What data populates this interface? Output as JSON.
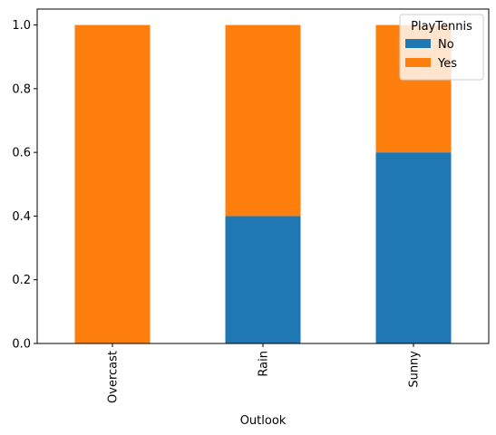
{
  "chart_data": {
    "type": "bar",
    "stacked": true,
    "categories": [
      "Overcast",
      "Rain",
      "Sunny"
    ],
    "series": [
      {
        "name": "No",
        "values": [
          0.0,
          0.4,
          0.6
        ],
        "color": "#1f77b4"
      },
      {
        "name": "Yes",
        "values": [
          1.0,
          0.6,
          0.4
        ],
        "color": "#ff7f0e"
      }
    ],
    "xlabel": "Outlook",
    "ylabel": "",
    "ylim": [
      0,
      1.05
    ],
    "yticks": [
      "0.0",
      "0.2",
      "0.4",
      "0.6",
      "0.8",
      "1.0"
    ],
    "legend": {
      "title": "PlayTennis",
      "placement": "top-right"
    },
    "grid": false
  }
}
